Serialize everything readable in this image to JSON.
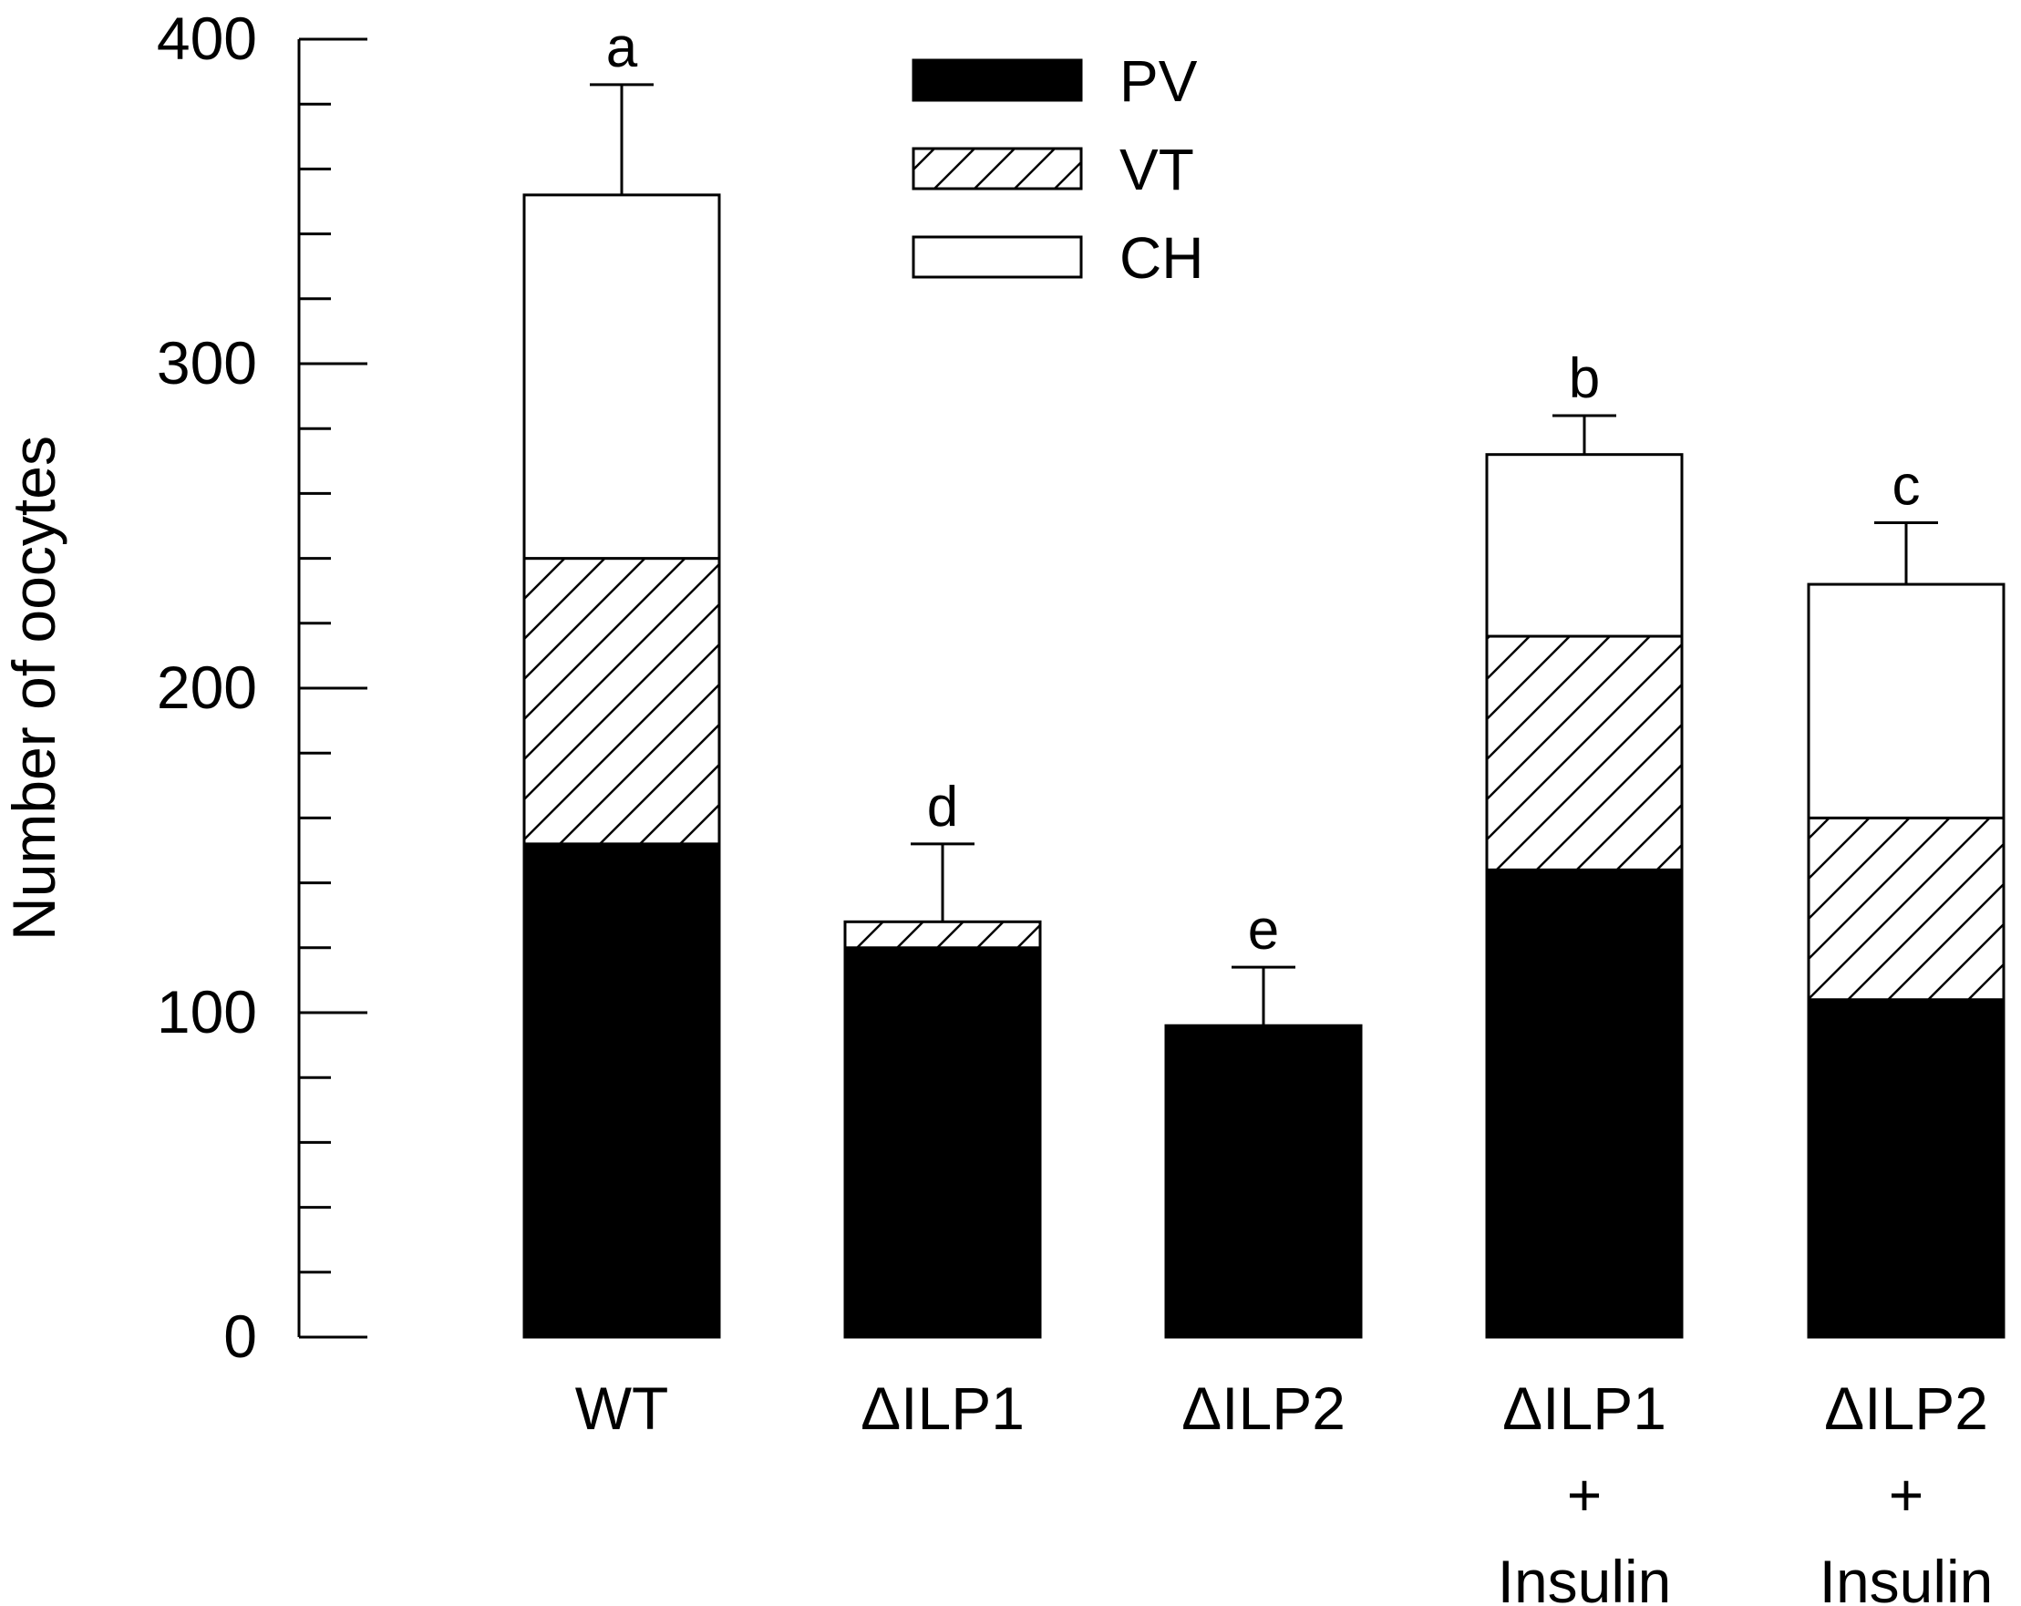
{
  "chart_data": {
    "type": "bar",
    "stacked": true,
    "ylabel": "Number of oocytes",
    "xlabel": "",
    "ylim": [
      0,
      400
    ],
    "yticks": [
      "0",
      "100",
      "200",
      "300",
      "400"
    ],
    "y_minor_step": 20,
    "categories": [
      [
        "WT"
      ],
      [
        "ΔILP1"
      ],
      [
        "ΔILP2"
      ],
      [
        "ΔILP1",
        "+",
        "Insulin"
      ],
      [
        "ΔILP2",
        "+",
        "Insulin"
      ]
    ],
    "series": [
      {
        "name": "PV",
        "pattern": "solid",
        "values": [
          152,
          120,
          96,
          144,
          104
        ]
      },
      {
        "name": "VT",
        "pattern": "hatched",
        "values": [
          88,
          8,
          0,
          72,
          56
        ]
      },
      {
        "name": "CH",
        "pattern": "open",
        "values": [
          112,
          0,
          0,
          56,
          72
        ]
      }
    ],
    "totals": [
      352,
      128,
      96,
      272,
      232
    ],
    "error_plus": [
      34,
      24,
      18,
      12,
      19
    ],
    "significance": [
      "a",
      "d",
      "e",
      "b",
      "c"
    ],
    "legend": {
      "position": "top-center",
      "entries": [
        "PV",
        "VT",
        "CH"
      ]
    }
  },
  "colors": {
    "ink": "#000000",
    "paper": "#ffffff"
  }
}
